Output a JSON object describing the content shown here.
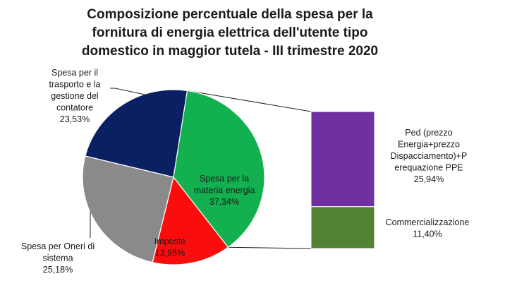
{
  "chart_data": {
    "type": "pie",
    "title_lines": [
      "Composizione percentuale della spesa per la",
      "fornitura di energia elettrica dell'utente tipo",
      "domestico in maggior tutela - III trimestre 2020"
    ],
    "slices": [
      {
        "label_lines": [
          "Spesa per il",
          "trasporto e la",
          "gestione del",
          "contatore"
        ],
        "value_label": "23,53%",
        "value": 23.53,
        "color": "#0a2062"
      },
      {
        "label_lines": [
          "Spesa per la",
          "materia energia"
        ],
        "value_label": "37,34%",
        "value": 37.34,
        "color": "#12b04f"
      },
      {
        "label_lines": [
          "Imposte"
        ],
        "value_label": "13,95%",
        "value": 13.95,
        "color": "#fb0d0d"
      },
      {
        "label_lines": [
          "Spesa per Oneri di",
          "sistema"
        ],
        "value_label": "25,18%",
        "value": 25.18,
        "color": "#8a8a8a"
      }
    ],
    "breakdown": {
      "of_slice": "Spesa per la materia energia",
      "segments": [
        {
          "label_lines": [
            "Ped (prezzo",
            "Energia+prezzo",
            "Dispacciamento)+P",
            "erequazione PPE"
          ],
          "value_label": "25,94%",
          "value": 25.94,
          "color": "#7030a0"
        },
        {
          "label_lines": [
            "Commercializzazione"
          ],
          "value_label": "11,40%",
          "value": 11.4,
          "color": "#548235"
        }
      ]
    }
  }
}
